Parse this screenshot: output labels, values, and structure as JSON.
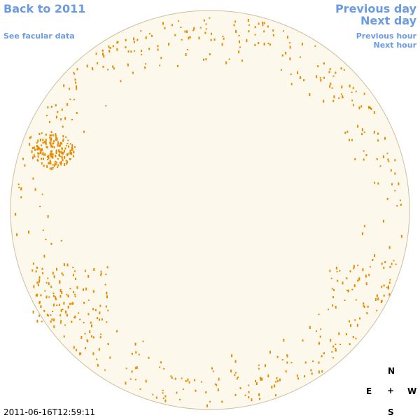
{
  "header": {
    "back_link": "Back to 2011",
    "facular_link": "See facular data",
    "previous_day": "Previous day",
    "next_day": "Next day",
    "previous_hour": "Previous hour",
    "next_hour": "Next hour"
  },
  "compass": {
    "north": "N",
    "east": "E",
    "center": "+",
    "west": "W",
    "south": "S"
  },
  "timestamp": "2011-06-16T12:59:11"
}
